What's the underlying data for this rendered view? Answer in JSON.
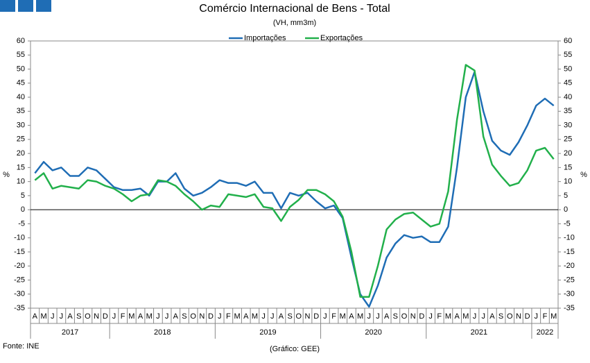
{
  "chart_data": {
    "type": "line",
    "title": "Comércio Internacional de Bens - Total",
    "subtitle": "(VH, mm3m)",
    "y_label": "%",
    "y2_label": "%",
    "source": "Fonte: INE",
    "credit": "(Gráfico: GEE)",
    "categories": [
      "A",
      "M",
      "J",
      "J",
      "A",
      "S",
      "O",
      "N",
      "D",
      "J",
      "F",
      "M",
      "A",
      "M",
      "J",
      "J",
      "A",
      "S",
      "O",
      "N",
      "D",
      "J",
      "F",
      "M",
      "A",
      "M",
      "J",
      "J",
      "A",
      "S",
      "O",
      "N",
      "D",
      "J",
      "F",
      "M",
      "A",
      "M",
      "J",
      "J",
      "A",
      "S",
      "O",
      "N",
      "D",
      "J",
      "F",
      "M",
      "A",
      "M",
      "J",
      "J",
      "A",
      "S",
      "O",
      "N",
      "D",
      "J",
      "F",
      "M"
    ],
    "year_labels": [
      "2017",
      "2018",
      "2019",
      "2020",
      "2021",
      "2022"
    ],
    "ylim": [
      -35,
      60
    ],
    "yticks": [
      -35,
      -30,
      -25,
      -20,
      -15,
      -10,
      -5,
      0,
      5,
      10,
      15,
      20,
      25,
      30,
      35,
      40,
      45,
      50,
      55,
      60
    ],
    "y2lim": [
      -35,
      60
    ],
    "y2ticks": [
      -35,
      -30,
      -25,
      -20,
      -15,
      -10,
      -5,
      0,
      5,
      10,
      15,
      20,
      25,
      30,
      35,
      40,
      45,
      50,
      55,
      60
    ],
    "legend": "top",
    "series": [
      {
        "name": "Importações",
        "color": "#1f6db5",
        "values": [
          13,
          17,
          14,
          15,
          12,
          12,
          15,
          14,
          11,
          8,
          7,
          7,
          7.5,
          5,
          10,
          10,
          13,
          7.5,
          5,
          6,
          8,
          10.5,
          9.5,
          9.5,
          8.5,
          10,
          6,
          6,
          0.5,
          6,
          5,
          6,
          3,
          0.5,
          1.5,
          -3,
          -17,
          -30,
          -34.5,
          -27,
          -17,
          -12,
          -9,
          -10,
          -9.5,
          -11.5,
          -11.5,
          -6,
          15,
          40,
          49,
          35,
          24.5,
          21,
          19.5,
          24,
          30,
          37,
          39.5,
          37
        ]
      },
      {
        "name": "Exportações",
        "color": "#22b04b",
        "values": [
          10.5,
          13,
          7.5,
          8.5,
          8,
          7.5,
          10.5,
          10,
          8.5,
          7.5,
          5.5,
          3,
          5,
          5.5,
          10.5,
          10,
          8.5,
          5.5,
          3,
          0,
          1.5,
          1,
          5.5,
          5,
          4.5,
          5.5,
          1,
          0.5,
          -4,
          1,
          3.5,
          7,
          7,
          5.5,
          3,
          -2.5,
          -15,
          -31,
          -31,
          -20,
          -7,
          -3.5,
          -1.5,
          -1,
          -3.5,
          -6,
          -5,
          6.5,
          32,
          51.5,
          49.5,
          26,
          16,
          12,
          8.5,
          9.5,
          14,
          21,
          22,
          18
        ]
      }
    ]
  }
}
